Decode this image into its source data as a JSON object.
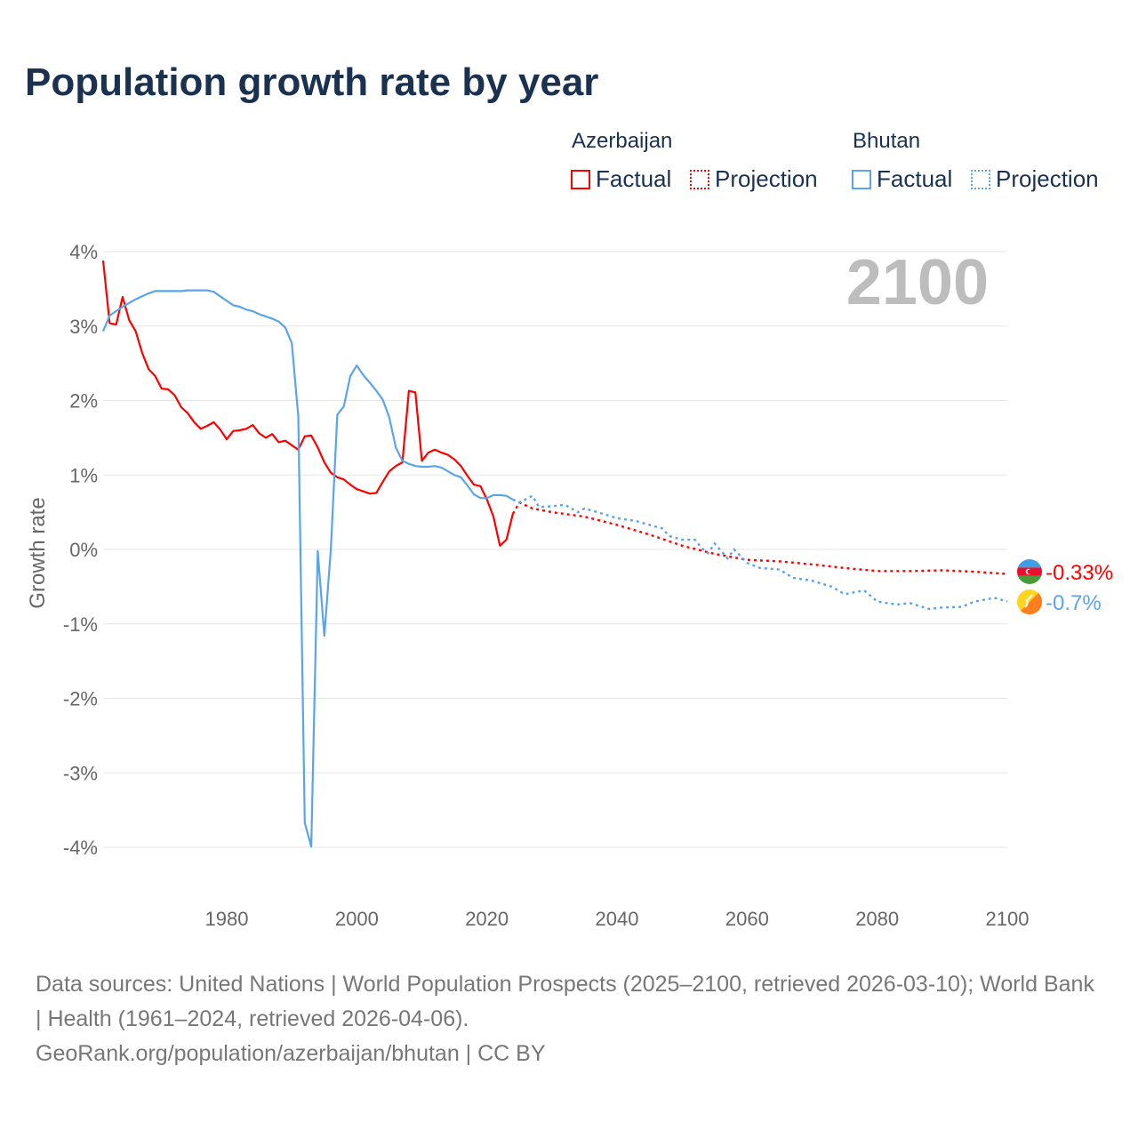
{
  "title": "Population growth rate by year",
  "legend": {
    "groups": [
      {
        "name": "Azerbaijan",
        "factual_label": "Factual",
        "projection_label": "Projection",
        "color": "#ff0000"
      },
      {
        "name": "Bhutan",
        "factual_label": "Factual",
        "projection_label": "Projection",
        "color": "#5aa5ea"
      }
    ]
  },
  "year_label": "2100",
  "footer": {
    "sources": "Data sources: United Nations | World Population Prospects (2025–2100, retrieved 2026-03-10); World Bank | Health (1961–2024, retrieved 2026-04-06).",
    "link": "GeoRank.org/population/azerbaijan/bhutan | CC BY"
  },
  "chart_data": {
    "type": "line",
    "title": "Population growth rate by year",
    "xlabel": "",
    "ylabel": "Growth rate",
    "xlim": [
      1961,
      2100
    ],
    "ylim": [
      -4,
      4
    ],
    "xticks": [
      1980,
      2000,
      2020,
      2040,
      2060,
      2080,
      2100
    ],
    "xtick_labels": [
      "1980",
      "2000",
      "2020",
      "2040",
      "2060",
      "2080",
      "2100"
    ],
    "yticks": [
      4,
      3,
      2,
      1,
      0,
      -1,
      -2,
      -3,
      -4
    ],
    "ytick_labels": [
      "4%",
      "3%",
      "2%",
      "1%",
      "0%",
      "-1%",
      "-2%",
      "-3%",
      "-4%"
    ],
    "grid": true,
    "series": [
      {
        "name": "Azerbaijan",
        "color": "#ff0000",
        "end_label": "-0.33%",
        "factual": {
          "x": [
            1961,
            1962,
            1963,
            1964,
            1965,
            1966,
            1967,
            1968,
            1969,
            1970,
            1971,
            1972,
            1973,
            1974,
            1975,
            1976,
            1977,
            1978,
            1979,
            1980,
            1981,
            1982,
            1983,
            1984,
            1985,
            1986,
            1987,
            1988,
            1989,
            1990,
            1991,
            1992,
            1993,
            1994,
            1995,
            1996,
            1997,
            1998,
            1999,
            2000,
            2001,
            2002,
            2003,
            2004,
            2005,
            2006,
            2007,
            2008,
            2009,
            2010,
            2011,
            2012,
            2013,
            2014,
            2015,
            2016,
            2017,
            2018,
            2019,
            2020,
            2021,
            2022,
            2023,
            2024
          ],
          "y": [
            3.88,
            3.04,
            3.02,
            3.39,
            3.08,
            2.93,
            2.64,
            2.42,
            2.33,
            2.16,
            2.15,
            2.07,
            1.91,
            1.83,
            1.71,
            1.62,
            1.66,
            1.71,
            1.61,
            1.48,
            1.59,
            1.6,
            1.62,
            1.67,
            1.56,
            1.5,
            1.55,
            1.44,
            1.46,
            1.4,
            1.34,
            1.52,
            1.53,
            1.37,
            1.17,
            1.03,
            0.97,
            0.94,
            0.87,
            0.81,
            0.78,
            0.75,
            0.76,
            0.91,
            1.05,
            1.12,
            1.17,
            2.13,
            2.11,
            1.19,
            1.3,
            1.34,
            1.3,
            1.27,
            1.21,
            1.12,
            0.99,
            0.87,
            0.85,
            0.67,
            0.44,
            0.05,
            0.13,
            0.48
          ]
        },
        "projection": {
          "x": [
            2024,
            2025,
            2027,
            2030,
            2035,
            2040,
            2045,
            2050,
            2055,
            2060,
            2065,
            2070,
            2075,
            2080,
            2085,
            2090,
            2095,
            2100
          ],
          "y": [
            0.48,
            0.63,
            0.55,
            0.5,
            0.44,
            0.33,
            0.2,
            0.05,
            -0.06,
            -0.14,
            -0.16,
            -0.2,
            -0.25,
            -0.29,
            -0.29,
            -0.28,
            -0.3,
            -0.33
          ]
        }
      },
      {
        "name": "Bhutan",
        "color": "#5aa5ea",
        "end_label": "-0.7%",
        "factual": {
          "x": [
            1961,
            1962,
            1963,
            1964,
            1965,
            1966,
            1967,
            1968,
            1969,
            1970,
            1971,
            1972,
            1973,
            1974,
            1975,
            1976,
            1977,
            1978,
            1979,
            1980,
            1981,
            1982,
            1983,
            1984,
            1985,
            1986,
            1987,
            1988,
            1989,
            1990,
            1991,
            1992,
            1993,
            1994,
            1995,
            1996,
            1997,
            1998,
            1999,
            2000,
            2001,
            2002,
            2003,
            2004,
            2005,
            2006,
            2007,
            2008,
            2009,
            2010,
            2011,
            2012,
            2013,
            2014,
            2015,
            2016,
            2017,
            2018,
            2019,
            2020,
            2021,
            2022,
            2023,
            2024
          ],
          "y": [
            2.93,
            3.14,
            3.2,
            3.26,
            3.31,
            3.36,
            3.4,
            3.44,
            3.47,
            3.47,
            3.47,
            3.47,
            3.47,
            3.48,
            3.48,
            3.48,
            3.48,
            3.46,
            3.4,
            3.34,
            3.28,
            3.26,
            3.22,
            3.2,
            3.16,
            3.13,
            3.1,
            3.06,
            2.98,
            2.77,
            1.79,
            -3.67,
            -3.99,
            -0.02,
            -1.16,
            0.0,
            1.81,
            1.92,
            2.33,
            2.47,
            2.34,
            2.24,
            2.13,
            2.01,
            1.77,
            1.37,
            1.19,
            1.15,
            1.12,
            1.11,
            1.11,
            1.12,
            1.1,
            1.05,
            1.0,
            0.97,
            0.86,
            0.74,
            0.69,
            0.69,
            0.73,
            0.73,
            0.72,
            0.67
          ]
        },
        "projection": {
          "x": [
            2024,
            2025,
            2027,
            2028,
            2030,
            2032,
            2034,
            2035,
            2037,
            2040,
            2043,
            2045,
            2047,
            2048,
            2050,
            2052,
            2053,
            2054,
            2055,
            2057,
            2058,
            2060,
            2062,
            2065,
            2067,
            2070,
            2073,
            2075,
            2078,
            2080,
            2083,
            2085,
            2088,
            2090,
            2093,
            2095,
            2098,
            2100
          ],
          "y": [
            0.67,
            0.63,
            0.72,
            0.57,
            0.58,
            0.6,
            0.5,
            0.55,
            0.5,
            0.42,
            0.38,
            0.33,
            0.28,
            0.18,
            0.13,
            0.13,
            0.02,
            -0.05,
            0.08,
            -0.12,
            0.0,
            -0.18,
            -0.25,
            -0.27,
            -0.38,
            -0.42,
            -0.5,
            -0.6,
            -0.55,
            -0.7,
            -0.74,
            -0.72,
            -0.8,
            -0.78,
            -0.77,
            -0.7,
            -0.65,
            -0.7
          ]
        }
      }
    ]
  }
}
